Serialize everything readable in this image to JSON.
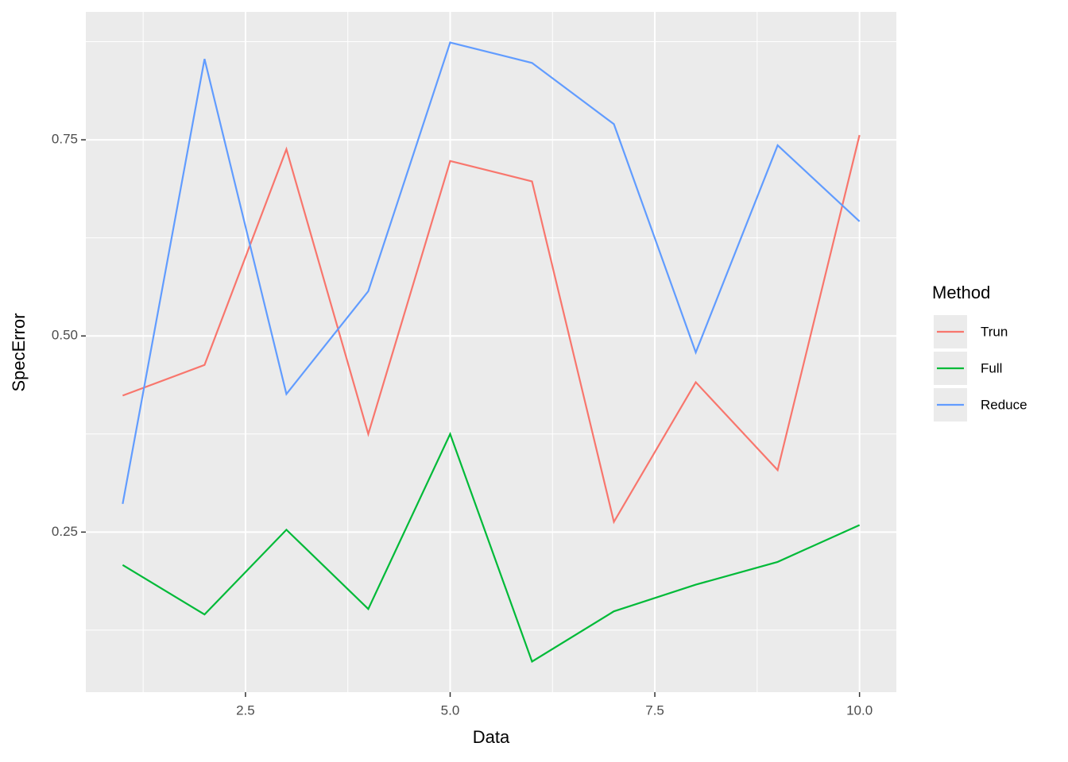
{
  "chart_data": {
    "type": "line",
    "x_label": "Data",
    "y_label": "SpecError",
    "legend_title": "Method",
    "legend_position": "right",
    "grid": true,
    "x": [
      1,
      2,
      3,
      4,
      5,
      6,
      7,
      8,
      9,
      10
    ],
    "xlim": [
      0.55,
      10.45
    ],
    "xticks": [
      2.5,
      {
        "value": 5,
        "label": "5.0"
      },
      7.5,
      {
        "value": 10,
        "label": "10.0"
      }
    ],
    "ylim": [
      0.046,
      0.913
    ],
    "yticks": [
      0.25,
      {
        "value": 0.5,
        "label": "0.50"
      },
      0.75
    ],
    "series": [
      {
        "name": "Trun",
        "color": "#f8766d",
        "values": [
          0.424,
          0.463,
          0.738,
          0.375,
          0.723,
          0.697,
          0.263,
          0.441,
          0.329,
          0.756
        ]
      },
      {
        "name": "Full",
        "color": "#00ba38",
        "values": [
          0.208,
          0.145,
          0.253,
          0.152,
          0.375,
          0.085,
          0.149,
          0.183,
          0.212,
          0.259
        ]
      },
      {
        "name": "Reduce",
        "color": "#619cff",
        "values": [
          0.286,
          0.853,
          0.426,
          0.557,
          0.874,
          0.848,
          0.77,
          0.479,
          0.743,
          0.646
        ]
      }
    ]
  }
}
